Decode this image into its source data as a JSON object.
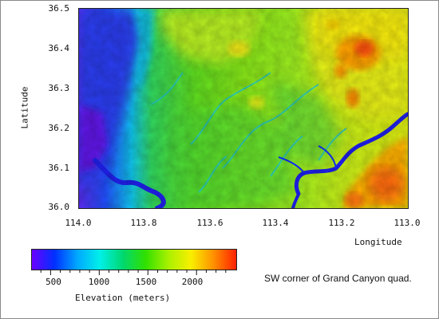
{
  "map": {
    "y_axis": {
      "label": "Latitude",
      "ticks": [
        {
          "value": 36.5,
          "label": "36.5"
        },
        {
          "value": 36.4,
          "label": "36.4"
        },
        {
          "value": 36.3,
          "label": "36.3"
        },
        {
          "value": 36.2,
          "label": "36.2"
        },
        {
          "value": 36.1,
          "label": "36.1"
        },
        {
          "value": 36.0,
          "label": "36.0"
        }
      ],
      "range": [
        36.0,
        36.5
      ]
    },
    "x_axis": {
      "label": "Longitude",
      "ticks": [
        {
          "value": 114.0,
          "label": "114.0"
        },
        {
          "value": 113.8,
          "label": "113.8"
        },
        {
          "value": 113.6,
          "label": "113.6"
        },
        {
          "value": 113.4,
          "label": "113.4"
        },
        {
          "value": 113.2,
          "label": "113.2"
        },
        {
          "value": 113.0,
          "label": "113.0"
        }
      ],
      "range": [
        114.0,
        113.0
      ]
    },
    "colorbar": {
      "label": "Elevation (meters)",
      "range": [
        300,
        2400
      ],
      "ticks": [
        {
          "value": 500,
          "label": "500"
        },
        {
          "value": 1000,
          "label": "1000"
        },
        {
          "value": 1500,
          "label": "1500"
        },
        {
          "value": 2000,
          "label": "2000"
        }
      ],
      "colors": [
        "#6a00ff",
        "#0030ff",
        "#00a8ff",
        "#00f0e8",
        "#00d870",
        "#30e000",
        "#a8f000",
        "#f8f000",
        "#ff9000",
        "#ff2000"
      ]
    },
    "caption": "SW corner of Grand Canyon quad."
  }
}
